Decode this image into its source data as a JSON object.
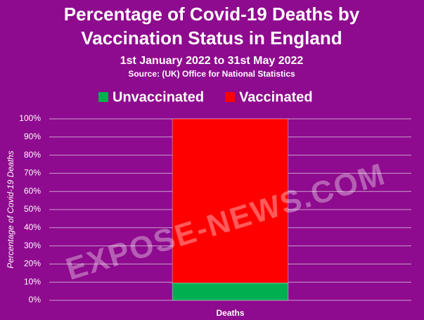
{
  "chart_data": {
    "type": "stacked_bar",
    "title": [
      "Percentage of Covid-19 Deaths by",
      "Vaccination Status in England"
    ],
    "subtitle": "1st January 2022 to 31st May 2022",
    "source": "Source:  (UK) Office for National Statistics",
    "y_label": "Percentage of Covid-19 Deaths",
    "categories": [
      "Deaths"
    ],
    "series": [
      {
        "name": "Unvaccinated",
        "color": "#00b050",
        "values": [
          9.6
        ]
      },
      {
        "name": "Vaccinated",
        "color": "#ff0000",
        "values": [
          90.4
        ]
      }
    ],
    "ylim": [
      0,
      100
    ],
    "yticks": [
      {
        "value": 0,
        "label": "0%"
      },
      {
        "value": 10,
        "label": "10%"
      },
      {
        "value": 20,
        "label": "20%"
      },
      {
        "value": 30,
        "label": "30%"
      },
      {
        "value": 40,
        "label": "40%"
      },
      {
        "value": 50,
        "label": "50%"
      },
      {
        "value": 60,
        "label": "60%"
      },
      {
        "value": 70,
        "label": "70%"
      },
      {
        "value": 80,
        "label": "80%"
      },
      {
        "value": 90,
        "label": "90%"
      },
      {
        "value": 100,
        "label": "100%"
      }
    ],
    "grid": true,
    "legend": "top",
    "watermark": "EXPOSE-NEWS.COM"
  }
}
